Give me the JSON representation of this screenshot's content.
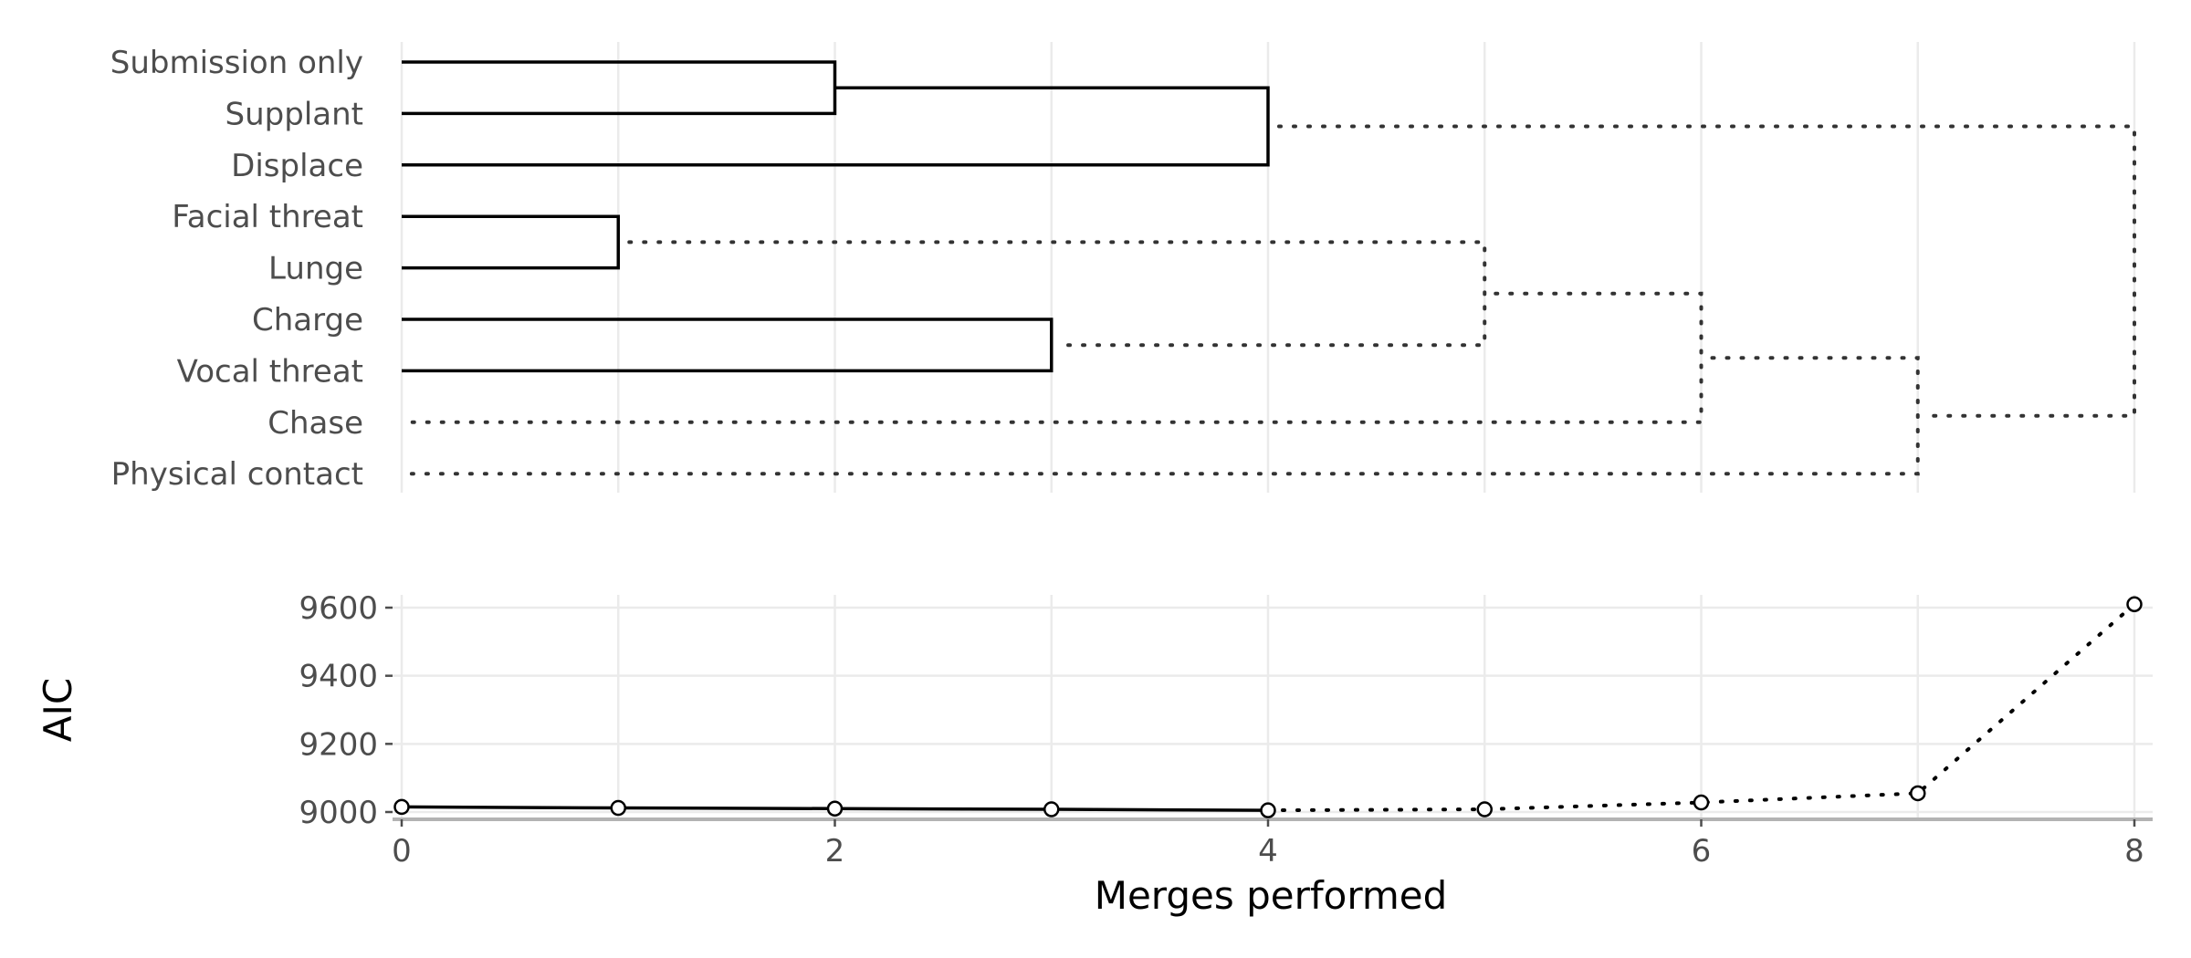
{
  "chart_data": [
    {
      "type": "dendrogram",
      "leaves": [
        "Submission only",
        "Supplant",
        "Displace",
        "Facial threat",
        "Lunge",
        "Charge",
        "Vocal threat",
        "Chase",
        "Physical contact"
      ],
      "merges": [
        {
          "height": 1,
          "left": "Facial threat",
          "right": "Lunge",
          "style": "solid"
        },
        {
          "height": 2,
          "left": "Submission only",
          "right": "Supplant",
          "style": "solid"
        },
        {
          "height": 3,
          "left": "Charge",
          "right": "Vocal threat",
          "style": "solid"
        },
        {
          "height": 4,
          "left": "merge-2",
          "right": "Displace",
          "style": "solid"
        },
        {
          "height": 5,
          "left": "merge-1",
          "right": "merge-3",
          "style": "dotted"
        },
        {
          "height": 6,
          "left": "merge-5",
          "right": "Chase",
          "style": "dotted"
        },
        {
          "height": 7,
          "left": "merge-6",
          "right": "Physical contact",
          "style": "dotted"
        },
        {
          "height": 8,
          "left": "merge-4",
          "right": "merge-7",
          "style": "dotted"
        }
      ],
      "xlim": [
        0,
        8
      ]
    },
    {
      "type": "line",
      "x": [
        0,
        1,
        2,
        3,
        4,
        5,
        6,
        7,
        8
      ],
      "y": [
        9015,
        9012,
        9010,
        9008,
        9005,
        9008,
        9028,
        9055,
        9610
      ],
      "solid_until_x": 4,
      "xlabel": "Merges performed",
      "ylabel": "AIC",
      "xticks": [
        0,
        2,
        4,
        6,
        8
      ],
      "yticks": [
        9000,
        9200,
        9400,
        9600
      ],
      "xlim": [
        0,
        8
      ],
      "ylim": [
        8980,
        9650
      ]
    }
  ]
}
